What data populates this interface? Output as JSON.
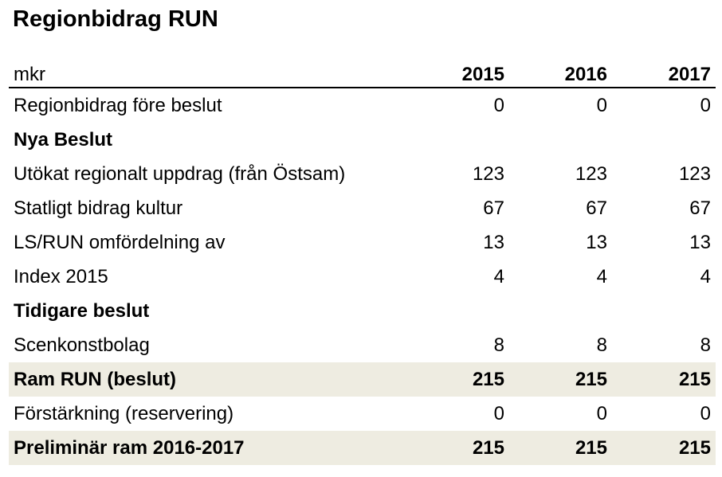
{
  "title": "Regionbidrag RUN",
  "table": {
    "unit_label": "mkr",
    "years": [
      "2015",
      "2016",
      "2017"
    ],
    "rows": [
      {
        "label": "Regionbidrag  före beslut",
        "values": [
          "0",
          "0",
          "0"
        ],
        "type": "data"
      },
      {
        "label": "Nya Beslut",
        "values": [
          "",
          "",
          ""
        ],
        "type": "section"
      },
      {
        "label": "Utökat regionalt uppdrag (från Östsam)",
        "values": [
          "123",
          "123",
          "123"
        ],
        "type": "data"
      },
      {
        "label": "Statligt bidrag kultur",
        "values": [
          "67",
          "67",
          "67"
        ],
        "type": "data"
      },
      {
        "label": "LS/RUN omfördelning av",
        "values": [
          "13",
          "13",
          "13"
        ],
        "type": "data"
      },
      {
        "label": "Index 2015",
        "values": [
          "4",
          "4",
          "4"
        ],
        "type": "data"
      },
      {
        "label": "Tidigare beslut",
        "values": [
          "",
          "",
          ""
        ],
        "type": "section"
      },
      {
        "label": "Scenkonstbolag",
        "values": [
          "8",
          "8",
          "8"
        ],
        "type": "data"
      },
      {
        "label": "Ram RUN (beslut)",
        "values": [
          "215",
          "215",
          "215"
        ],
        "type": "total"
      },
      {
        "label": "Förstärkning (reservering)",
        "values": [
          "0",
          "0",
          "0"
        ],
        "type": "data"
      },
      {
        "label": "Preliminär ram 2016-2017",
        "values": [
          "215",
          "215",
          "215"
        ],
        "type": "total"
      }
    ]
  },
  "colors": {
    "total_row_background": "#eeece1",
    "text": "#000000"
  }
}
